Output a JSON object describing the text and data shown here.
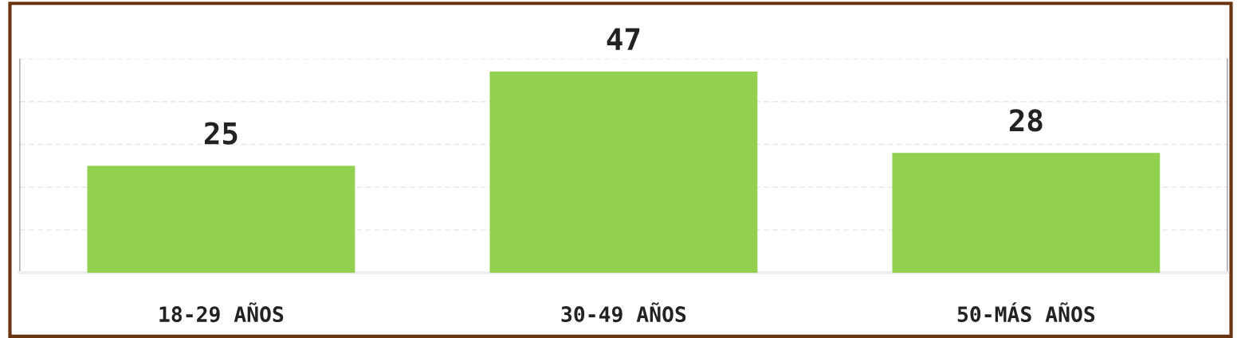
{
  "chart_data": {
    "type": "bar",
    "categories": [
      "18-29 AÑOS",
      "30-49 AÑOS",
      "50-MÁS AÑOS"
    ],
    "values": [
      25,
      47,
      28
    ],
    "color": "#92d050",
    "ylim": [
      0,
      50
    ],
    "yticks": [
      {
        "value": 0,
        "label": null
      },
      {
        "value": 10,
        "label": null
      },
      {
        "value": 20,
        "label": null
      },
      {
        "value": 30,
        "label": null
      },
      {
        "value": 40,
        "label": null
      },
      {
        "value": 50,
        "label": null
      }
    ],
    "tick_labels": "x",
    "grid": "y",
    "data_labels": true,
    "legend": false
  }
}
